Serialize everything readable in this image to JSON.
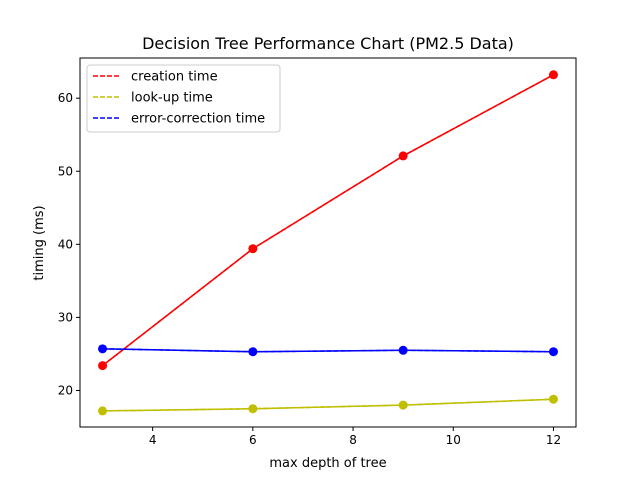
{
  "chart_data": {
    "type": "line",
    "title": "Decision Tree Performance Chart (PM2.5 Data)",
    "xlabel": "max depth of tree",
    "ylabel": "timing (ms)",
    "x": [
      3,
      6,
      9,
      12
    ],
    "xlim": [
      2.55,
      12.45
    ],
    "ylim": [
      15.0,
      65.5
    ],
    "xticks": [
      4,
      6,
      8,
      10,
      12
    ],
    "yticks": [
      20,
      30,
      40,
      50,
      60
    ],
    "grid": false,
    "legend_position": "top-left",
    "series": [
      {
        "name": "creation time",
        "color": "#ff0000",
        "values": [
          23.4,
          39.4,
          52.1,
          63.2
        ]
      },
      {
        "name": "look-up time",
        "color": "#bfbf00",
        "values": [
          17.2,
          17.5,
          18.0,
          18.8
        ]
      },
      {
        "name": "error-correction time",
        "color": "#0000ff",
        "values": [
          25.7,
          25.3,
          25.5,
          25.3
        ]
      }
    ]
  }
}
